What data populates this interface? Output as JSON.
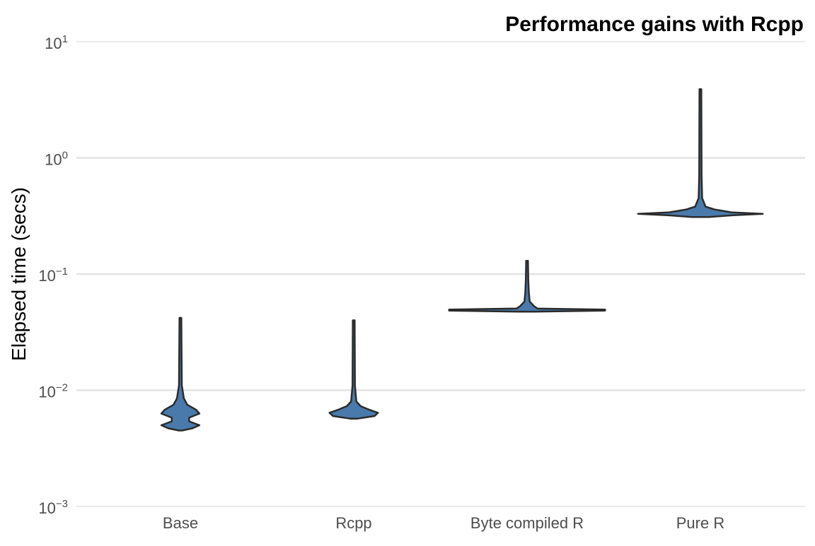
{
  "chart_data": {
    "type": "violin",
    "title": "Performance gains with Rcpp",
    "xlabel": "",
    "ylabel": "Elapsed time (secs)",
    "y_scale": "log10",
    "ylim": [
      0.001,
      10
    ],
    "y_ticks": [
      {
        "value": 0.001,
        "base": "10",
        "exp": "−3"
      },
      {
        "value": 0.01,
        "base": "10",
        "exp": "−2"
      },
      {
        "value": 0.1,
        "base": "10",
        "exp": "−1"
      },
      {
        "value": 1,
        "base": "10",
        "exp": "0"
      },
      {
        "value": 10,
        "base": "10",
        "exp": "1"
      }
    ],
    "grid": true,
    "legend": "none",
    "fill_color": "#4a7aab",
    "outline_color": "#2b2b2b",
    "categories": [
      "Base",
      "Rcpp",
      "Byte compiled R",
      "Pure R"
    ],
    "series": [
      {
        "category": "Base",
        "min": 0.0045,
        "max": 0.042,
        "profile": [
          [
            0.0045,
            0.01
          ],
          [
            0.0047,
            0.07
          ],
          [
            0.005,
            0.11
          ],
          [
            0.0054,
            0.05
          ],
          [
            0.0058,
            0.05
          ],
          [
            0.0063,
            0.11
          ],
          [
            0.0068,
            0.09
          ],
          [
            0.0075,
            0.04
          ],
          [
            0.0085,
            0.02
          ],
          [
            0.011,
            0.008
          ],
          [
            0.042,
            0.005
          ]
        ]
      },
      {
        "category": "Rcpp",
        "min": 0.0057,
        "max": 0.04,
        "profile": [
          [
            0.0057,
            0.02
          ],
          [
            0.006,
            0.12
          ],
          [
            0.0064,
            0.14
          ],
          [
            0.0068,
            0.09
          ],
          [
            0.0073,
            0.04
          ],
          [
            0.008,
            0.015
          ],
          [
            0.011,
            0.007
          ],
          [
            0.04,
            0.005
          ]
        ]
      },
      {
        "category": "Byte compiled R",
        "min": 0.0475,
        "max": 0.13,
        "profile": [
          [
            0.0475,
            0.05
          ],
          [
            0.0485,
            0.45
          ],
          [
            0.0495,
            0.45
          ],
          [
            0.0505,
            0.06
          ],
          [
            0.053,
            0.04
          ],
          [
            0.058,
            0.015
          ],
          [
            0.07,
            0.01
          ],
          [
            0.09,
            0.007
          ],
          [
            0.13,
            0.005
          ]
        ]
      },
      {
        "category": "Pure R",
        "min": 0.31,
        "max": 3.9,
        "profile": [
          [
            0.31,
            0.05
          ],
          [
            0.32,
            0.18
          ],
          [
            0.33,
            0.36
          ],
          [
            0.34,
            0.18
          ],
          [
            0.36,
            0.08
          ],
          [
            0.38,
            0.03
          ],
          [
            0.45,
            0.01
          ],
          [
            0.7,
            0.007
          ],
          [
            3.9,
            0.005
          ]
        ]
      }
    ]
  }
}
